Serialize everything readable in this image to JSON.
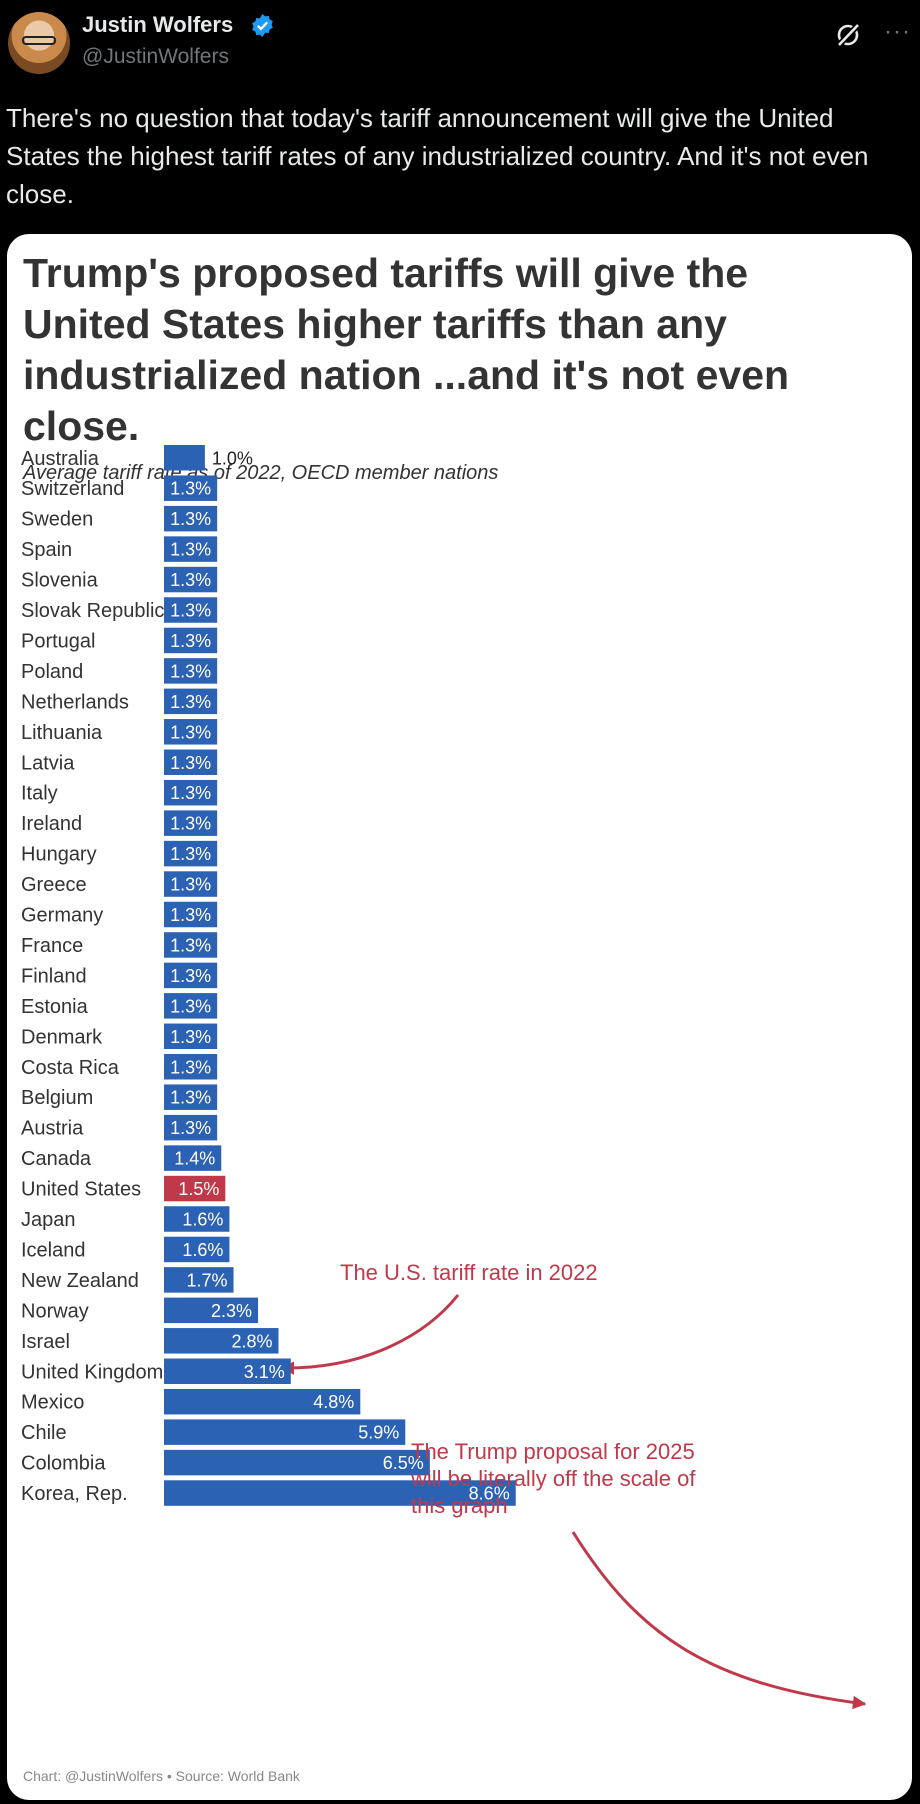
{
  "tweet": {
    "author": "Justin Wolfers",
    "handle": "@JustinWolfers",
    "text": "There's no question that today's tariff announcement will give the United States the highest tariff rates of any industrialized country. And it's not even close.",
    "icons": [
      "verified-badge-icon",
      "grok-icon",
      "more-icon"
    ],
    "more_label": "···"
  },
  "card": {
    "annotation_1": "The U.S. tariff rate in 2022",
    "annotation_2": "The Trump proposal for 2025 will be literally off the scale of this graph",
    "footer": "Chart: @JustinWolfers • Source: World Bank"
  },
  "chart_data": {
    "type": "bar",
    "orientation": "horizontal",
    "title": "Trump's proposed tariffs will give the United States higher tariffs than any industrialized nation ...and it's not even close.",
    "subtitle": "Average tariff rate as of 2022, OECD member nations",
    "categories": [
      "Australia",
      "Switzerland",
      "Sweden",
      "Spain",
      "Slovenia",
      "Slovak Republic",
      "Portugal",
      "Poland",
      "Netherlands",
      "Lithuania",
      "Latvia",
      "Italy",
      "Ireland",
      "Hungary",
      "Greece",
      "Germany",
      "France",
      "Finland",
      "Estonia",
      "Denmark",
      "Costa Rica",
      "Belgium",
      "Austria",
      "Canada",
      "United States",
      "Japan",
      "Iceland",
      "New Zealand",
      "Norway",
      "Israel",
      "United Kingdom",
      "Mexico",
      "Chile",
      "Colombia",
      "Korea, Rep."
    ],
    "values": [
      1.0,
      1.3,
      1.3,
      1.3,
      1.3,
      1.3,
      1.3,
      1.3,
      1.3,
      1.3,
      1.3,
      1.3,
      1.3,
      1.3,
      1.3,
      1.3,
      1.3,
      1.3,
      1.3,
      1.3,
      1.3,
      1.3,
      1.3,
      1.4,
      1.5,
      1.6,
      1.6,
      1.7,
      2.3,
      2.8,
      3.1,
      4.8,
      5.9,
      6.5,
      8.6
    ],
    "labels": [
      "1.0%",
      "1.3%",
      "1.3%",
      "1.3%",
      "1.3%",
      "1.3%",
      "1.3%",
      "1.3%",
      "1.3%",
      "1.3%",
      "1.3%",
      "1.3%",
      "1.3%",
      "1.3%",
      "1.3%",
      "1.3%",
      "1.3%",
      "1.3%",
      "1.3%",
      "1.3%",
      "1.3%",
      "1.3%",
      "1.3%",
      "1.4%",
      "1.5%",
      "1.6%",
      "1.6%",
      "1.7%",
      "2.3%",
      "2.8%",
      "3.1%",
      "4.8%",
      "5.9%",
      "6.5%",
      "8.6%"
    ],
    "highlight": "United States",
    "colors": {
      "bar": "#2c62b4",
      "highlight": "#c0394a",
      "annotation": "#c0394a"
    },
    "xlim": [
      0,
      14.5
    ],
    "grid": false
  }
}
